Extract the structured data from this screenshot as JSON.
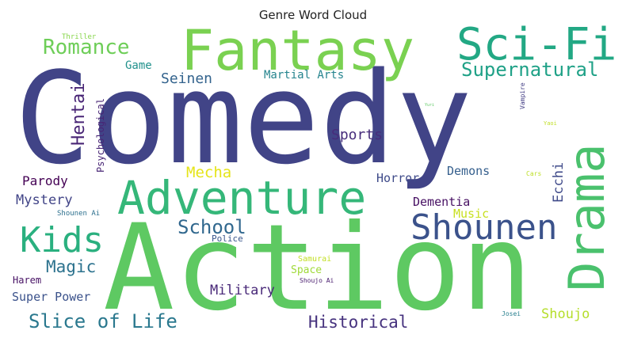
{
  "chart_data": {
    "type": "wordcloud",
    "title": "Genre Word Cloud",
    "words": [
      {
        "text": "Comedy",
        "color": "#414487"
      },
      {
        "text": "Action",
        "color": "#5ec962"
      },
      {
        "text": "Fantasy",
        "color": "#7ad151"
      },
      {
        "text": "Adventure",
        "color": "#35b779"
      },
      {
        "text": "Sci-Fi",
        "color": "#22a884"
      },
      {
        "text": "Drama",
        "color": "#4ac16d"
      },
      {
        "text": "Shounen",
        "color": "#3b528b"
      },
      {
        "text": "Kids",
        "color": "#2ab07f"
      },
      {
        "text": "Romance",
        "color": "#6ece58"
      },
      {
        "text": "Supernatural",
        "color": "#1fa187"
      },
      {
        "text": "Hentai",
        "color": "#482475"
      },
      {
        "text": "Slice of Life",
        "color": "#2a788e"
      },
      {
        "text": "School",
        "color": "#31688e"
      },
      {
        "text": "Historical",
        "color": "#46327e"
      },
      {
        "text": "Magic",
        "color": "#2c728e"
      },
      {
        "text": "Mecha",
        "color": "#e5e419"
      },
      {
        "text": "Seinen",
        "color": "#33638d"
      },
      {
        "text": "Sports",
        "color": "#472d7b"
      },
      {
        "text": "Ecchi",
        "color": "#3e4989"
      },
      {
        "text": "Shoujo",
        "color": "#b5de2b"
      },
      {
        "text": "Military",
        "color": "#482878"
      },
      {
        "text": "Mystery",
        "color": "#414487"
      },
      {
        "text": "Parody",
        "color": "#440154"
      },
      {
        "text": "Super Power",
        "color": "#3b528b"
      },
      {
        "text": "Horror",
        "color": "#3e4a89"
      },
      {
        "text": "Demons",
        "color": "#355f8d"
      },
      {
        "text": "Dementia",
        "color": "#471063"
      },
      {
        "text": "Music",
        "color": "#c8e020"
      },
      {
        "text": "Martial Arts",
        "color": "#25848e"
      },
      {
        "text": "Game",
        "color": "#21918c"
      },
      {
        "text": "Psychological",
        "color": "#482575"
      },
      {
        "text": "Harem",
        "color": "#471164"
      },
      {
        "text": "Space",
        "color": "#a0da39"
      },
      {
        "text": "Police",
        "color": "#39568c"
      },
      {
        "text": "Thriller",
        "color": "#86d549"
      },
      {
        "text": "Samurai",
        "color": "#c2df23"
      },
      {
        "text": "Shounen Ai",
        "color": "#2d708e"
      },
      {
        "text": "Shoujo Ai",
        "color": "#481b6d"
      },
      {
        "text": "Vampire",
        "color": "#433e85"
      },
      {
        "text": "Josei",
        "color": "#277f8e"
      },
      {
        "text": "Cars",
        "color": "#bddf26"
      },
      {
        "text": "Yaoi",
        "color": "#c0df25"
      },
      {
        "text": "Yuri",
        "color": "#5cc863"
      }
    ]
  }
}
